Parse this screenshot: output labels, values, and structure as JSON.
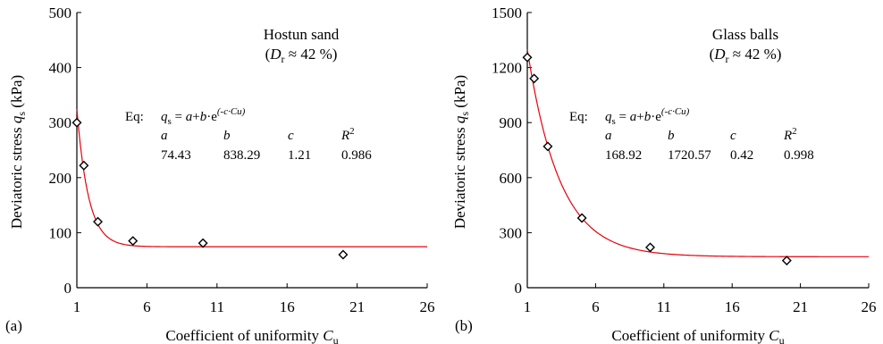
{
  "chart_data": [
    {
      "type": "scatter",
      "panel_label": "(a)",
      "material": "Hostun sand",
      "density": {
        "var": "D",
        "sub": "r",
        "rel": " ≈ 42 %"
      },
      "xlabel": {
        "text": "Coefficient of uniformity ",
        "var": "C",
        "sub": "u"
      },
      "ylabel": {
        "text": "Deviatoric stress ",
        "var": "q",
        "sub": "s",
        "unit": " (kPa)"
      },
      "xlim": [
        1,
        26
      ],
      "ylim": [
        0,
        500
      ],
      "xticks": [
        "1",
        "6",
        "11",
        "16",
        "21",
        "26"
      ],
      "yticks": [
        "0",
        "100",
        "200",
        "300",
        "400",
        "500"
      ],
      "series": [
        {
          "x": [
            1.0,
            1.5,
            2.5,
            5.0,
            10.0,
            20.0
          ],
          "y": [
            300,
            222,
            120,
            85,
            81,
            60
          ]
        }
      ],
      "fit": {
        "a": 74.43,
        "b": 838.29,
        "c": 1.21,
        "color": "#e8000b"
      },
      "equation": {
        "prefix": "Eq:",
        "lhs_var": "q",
        "lhs_sub": "s",
        "rhs": "= a+b·e",
        "exponent": "(-c·Cu)",
        "headers": [
          "a",
          "b",
          "c",
          "R"
        ],
        "r_sup": "2",
        "values": [
          "74.43",
          "838.29",
          "1.21",
          "0.986"
        ]
      }
    },
    {
      "type": "scatter",
      "panel_label": "(b)",
      "material": "Glass balls",
      "density": {
        "var": "D",
        "sub": "r",
        "rel": " ≈ 42 %"
      },
      "xlabel": {
        "text": "Coefficient of uniformity ",
        "var": "C",
        "sub": "u"
      },
      "ylabel": {
        "text": "Deviatoric stress ",
        "var": "q",
        "sub": "s",
        "unit": " (kPa)"
      },
      "xlim": [
        1,
        26
      ],
      "ylim": [
        0,
        1500
      ],
      "xticks": [
        "1",
        "6",
        "11",
        "16",
        "21",
        "26"
      ],
      "yticks": [
        "0",
        "300",
        "600",
        "900",
        "1200",
        "1500"
      ],
      "series": [
        {
          "x": [
            1.0,
            1.5,
            2.5,
            5.0,
            10.0,
            20.0
          ],
          "y": [
            1255,
            1140,
            770,
            380,
            220,
            148
          ]
        }
      ],
      "fit": {
        "a": 168.92,
        "b": 1720.57,
        "c": 0.42,
        "color": "#e8000b"
      },
      "equation": {
        "prefix": "Eq:",
        "lhs_var": "q",
        "lhs_sub": "s",
        "rhs": "= a+b·e",
        "exponent": "(-c·Cu)",
        "headers": [
          "a",
          "b",
          "c",
          "R"
        ],
        "r_sup": "2",
        "values": [
          "168.92",
          "1720.57",
          "0.42",
          "0.998"
        ]
      }
    }
  ]
}
